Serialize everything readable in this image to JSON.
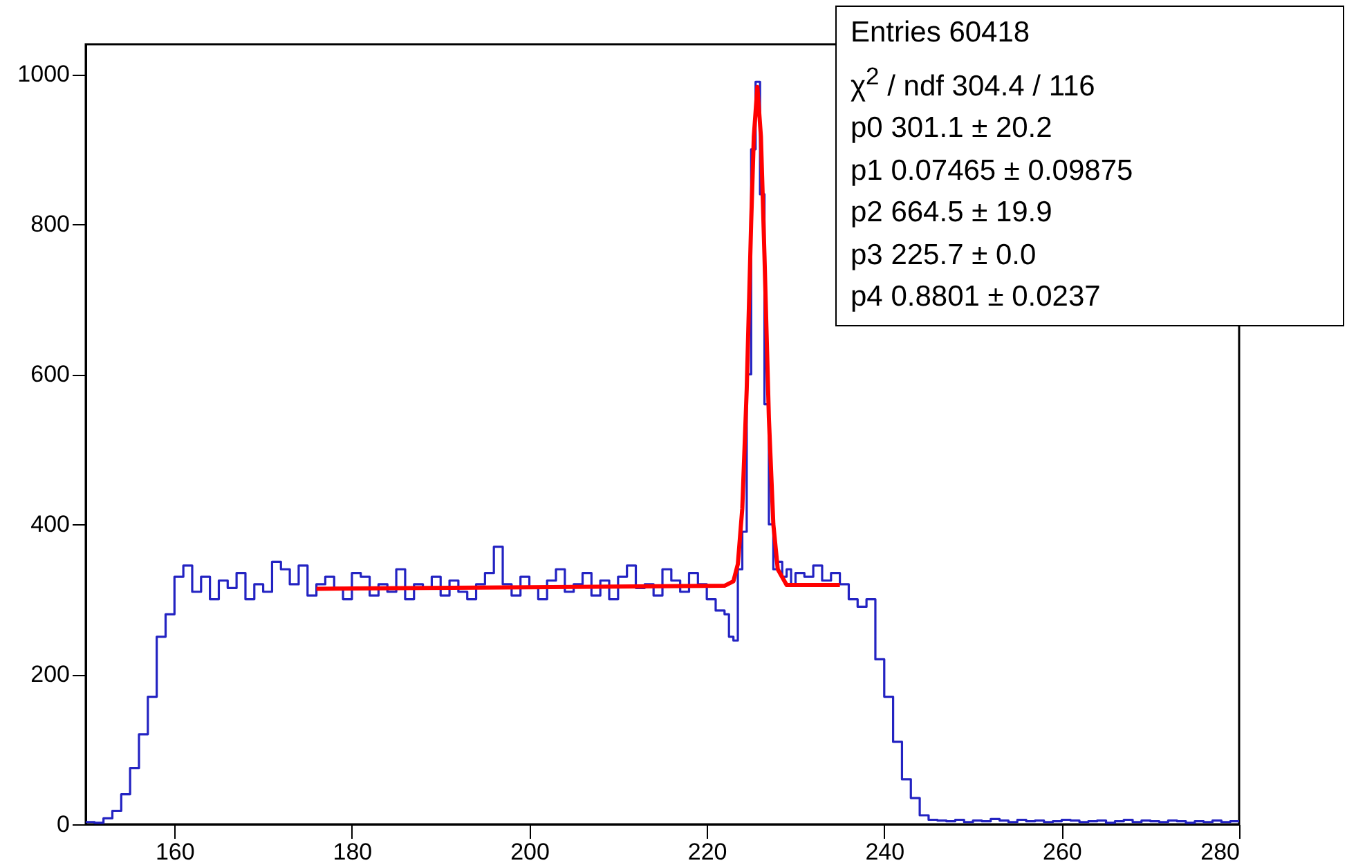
{
  "chart_data": {
    "type": "histogram",
    "color": "#2323c2",
    "bins": [
      150,
      151,
      152,
      153,
      154,
      155,
      156,
      157,
      158,
      159,
      160,
      161,
      162,
      163,
      164,
      165,
      166,
      167,
      168,
      169,
      170,
      171,
      172,
      173,
      174,
      175,
      176,
      177,
      178,
      179,
      180,
      181,
      182,
      183,
      184,
      185,
      186,
      187,
      188,
      189,
      190,
      191,
      192,
      193,
      194,
      195,
      196,
      197,
      198,
      199,
      200,
      201,
      202,
      203,
      204,
      205,
      206,
      207,
      208,
      209,
      210,
      211,
      212,
      213,
      214,
      215,
      216,
      217,
      218,
      219,
      220,
      221,
      222,
      222.5,
      223,
      223.5,
      224,
      224.5,
      225,
      225.5,
      226,
      226.5,
      227,
      227.5,
      228,
      228.5,
      229,
      229.5,
      230,
      231,
      232,
      233,
      234,
      235,
      236,
      237,
      238,
      239,
      240,
      241,
      242,
      243,
      244,
      245,
      246,
      247,
      248,
      249,
      250,
      251,
      252,
      253,
      254,
      255,
      256,
      257,
      258,
      259,
      260,
      261,
      262,
      263,
      264,
      265,
      266,
      267,
      268,
      269,
      270,
      271,
      272,
      273,
      274,
      275,
      276,
      277,
      278,
      279,
      280
    ],
    "values": [
      3,
      2,
      8,
      18,
      40,
      75,
      120,
      170,
      250,
      280,
      330,
      345,
      310,
      330,
      300,
      325,
      315,
      335,
      300,
      320,
      310,
      350,
      340,
      320,
      345,
      305,
      320,
      330,
      315,
      300,
      335,
      330,
      305,
      320,
      310,
      340,
      300,
      320,
      315,
      330,
      305,
      325,
      310,
      300,
      320,
      335,
      370,
      320,
      305,
      330,
      315,
      300,
      325,
      340,
      310,
      320,
      335,
      305,
      325,
      300,
      330,
      345,
      315,
      320,
      305,
      340,
      325,
      310,
      335,
      320,
      300,
      285,
      280,
      250,
      245,
      340,
      390,
      600,
      900,
      990,
      840,
      560,
      400,
      340,
      350,
      330,
      340,
      320,
      335,
      330,
      345,
      325,
      335,
      320,
      300,
      290,
      300,
      220,
      170,
      110,
      60,
      35,
      12,
      6,
      5,
      4,
      6,
      3,
      5,
      4,
      7,
      5,
      3,
      6,
      4,
      5,
      3,
      4,
      6,
      5,
      3,
      4,
      5,
      2,
      4,
      6,
      3,
      5,
      4,
      3,
      5,
      4,
      2,
      4,
      3,
      5,
      3,
      4
    ],
    "series": [
      {
        "type": "line",
        "color": "#ff0000",
        "x": [
          176,
          200,
          222,
          223,
          223.5,
          224,
          224.5,
          225,
          225.3,
          225.7,
          226.1,
          226.5,
          227,
          227.5,
          228,
          229,
          235
        ],
        "values": [
          314,
          316,
          318,
          324,
          347,
          421,
          580,
          802,
          917,
          983,
          917,
          758,
          541,
          400,
          340,
          319,
          319
        ]
      }
    ],
    "xlim": [
      150,
      280
    ],
    "xticks": [
      160,
      180,
      200,
      220,
      240,
      260,
      280
    ],
    "ylim": [
      0,
      1040
    ],
    "yticks": [
      0,
      200,
      400,
      600,
      800,
      1000
    ],
    "grid": false,
    "annotations": [
      "Entries 60418",
      "χ$^{2}$ / ndf 304.4 / 116",
      "p0 301.1 ± 20.2",
      "p1 0.07465 ± 0.09875",
      "p2 664.5 ± 19.9",
      "p3 225.7 ± 0.0",
      "p4 0.8801 ± 0.0237"
    ]
  }
}
